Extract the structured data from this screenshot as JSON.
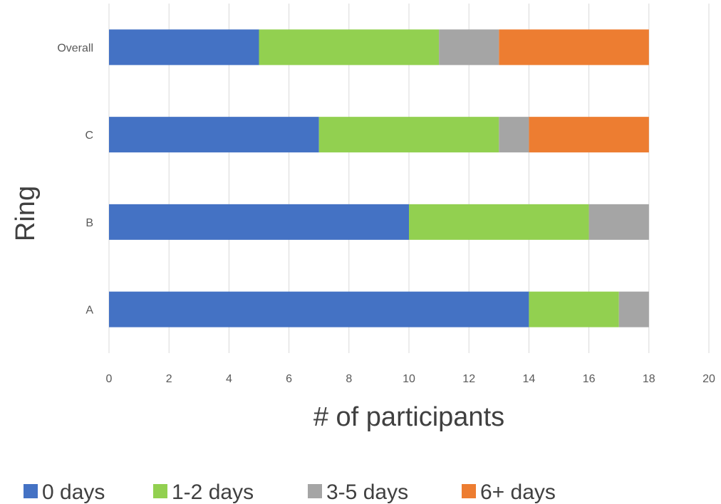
{
  "chart_data": {
    "type": "bar",
    "orientation": "horizontal",
    "stacked": true,
    "categories": [
      "A",
      "B",
      "C",
      "Overall"
    ],
    "series": [
      {
        "name": "0 days",
        "values": [
          14,
          10,
          7,
          5
        ],
        "color": "#4472C4"
      },
      {
        "name": "1-2 days",
        "values": [
          3,
          6,
          6,
          6
        ],
        "color": "#92D050"
      },
      {
        "name": "3-5 days",
        "values": [
          1,
          2,
          1,
          2
        ],
        "color": "#A5A5A5"
      },
      {
        "name": "6+ days",
        "values": [
          0,
          0,
          4,
          5
        ],
        "color": "#ED7D31"
      }
    ],
    "xlabel": "# of participants",
    "ylabel": "Ring",
    "xlim": [
      0,
      20
    ],
    "xticks": [
      "0",
      "2",
      "4",
      "6",
      "8",
      "10",
      "12",
      "14",
      "16",
      "18",
      "20"
    ],
    "grid": "vertical",
    "legend": "bottom"
  }
}
